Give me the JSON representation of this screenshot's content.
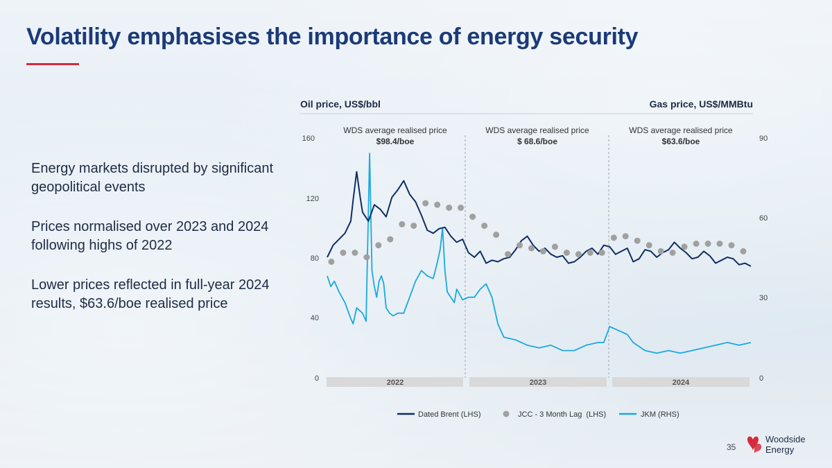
{
  "slide": {
    "title": "Volatility emphasises the importance of energy security",
    "bullets": [
      "Energy markets disrupted by significant geopolitical events",
      "Prices normalised over 2023 and 2024 following highs of 2022",
      "Lower prices reflected in full-year 2024 results, $63.6/boe realised price"
    ],
    "page_number": "35",
    "logo": {
      "line1": "Woodside",
      "line2": "Energy"
    },
    "colors": {
      "title": "#1b3a78",
      "accent": "#d52b3b",
      "brent": "#0f2d62",
      "jcc": "#a0a0a0",
      "jkm": "#19a9df"
    }
  },
  "chart_data": {
    "type": "line",
    "left_axis_title": "Oil price, US$/bbl",
    "right_axis_title": "Gas price, US$/MMBtu",
    "ylim_left": [
      0,
      160
    ],
    "ylim_right": [
      0,
      90
    ],
    "yticks_left": [
      "0",
      "40",
      "80",
      "120",
      "160"
    ],
    "yticks_right": [
      "0",
      "30",
      "60",
      "90"
    ],
    "xlim": [
      0,
      36
    ],
    "year_labels": [
      "2022",
      "2023",
      "2024"
    ],
    "annotations": [
      {
        "label": "WDS average realised price",
        "value": "$98.4/boe"
      },
      {
        "label": "WDS average realised price",
        "value": "$ 68.6/boe"
      },
      {
        "label": "WDS average realised price",
        "value": "$63.6/boe"
      }
    ],
    "legend": [
      "Dated Brent (LHS)",
      "JCC - 3 Month Lag  (LHS)",
      "JKM (RHS)"
    ],
    "series": [
      {
        "name": "Dated Brent (LHS)",
        "axis": "left",
        "style": "line",
        "x": [
          0,
          0.5,
          1,
          1.5,
          2,
          2.2,
          2.5,
          2.8,
          3,
          3.5,
          4,
          4.5,
          5,
          5.5,
          6,
          6.5,
          7,
          7.5,
          8,
          8.5,
          9,
          9.5,
          10,
          10.5,
          11,
          11.5,
          12,
          12.5,
          13,
          13.5,
          14,
          14.5,
          15,
          15.5,
          16,
          16.5,
          17,
          17.5,
          18,
          18.5,
          19,
          19.5,
          20,
          20.5,
          21,
          21.5,
          22,
          22.5,
          23,
          23.5,
          24,
          24.5,
          25,
          25.5,
          26,
          26.5,
          27,
          27.5,
          28,
          28.5,
          29,
          29.5,
          30,
          30.5,
          31,
          31.5,
          32,
          32.5,
          33,
          33.5,
          34,
          34.5,
          35,
          35.5,
          36
        ],
        "values": [
          80,
          88,
          92,
          96,
          104,
          118,
          137,
          120,
          110,
          104,
          115,
          112,
          107,
          120,
          125,
          131,
          122,
          117,
          108,
          98,
          96,
          99,
          100,
          94,
          90,
          92,
          83,
          80,
          84,
          76,
          78,
          77,
          79,
          80,
          85,
          91,
          94,
          88,
          84,
          86,
          82,
          80,
          81,
          76,
          77,
          80,
          84,
          86,
          82,
          88,
          87,
          82,
          84,
          86,
          77,
          79,
          85,
          84,
          80,
          83,
          85,
          90,
          86,
          83,
          79,
          80,
          84,
          81,
          76,
          78,
          80,
          79,
          75,
          76,
          74
        ]
      },
      {
        "name": "JCC - 3 Month Lag  (LHS)",
        "axis": "left",
        "style": "dots",
        "x": [
          0.35,
          1.35,
          2.35,
          3.35,
          4.35,
          5.35,
          6.35,
          7.35,
          8.35,
          9.35,
          10.35,
          11.35,
          12.35,
          13.35,
          14.35,
          15.35,
          16.35,
          17.35,
          18.35,
          19.35,
          20.35,
          21.35,
          22.35,
          23.35,
          24.35,
          25.35,
          26.35,
          27.35,
          28.35,
          29.35,
          30.35,
          31.35,
          32.35,
          33.35,
          34.35,
          35.35
        ],
        "values": [
          77,
          83,
          83,
          80,
          88,
          92,
          102,
          101,
          116,
          115,
          113,
          113,
          107,
          101,
          95,
          82,
          88,
          86,
          84,
          87,
          83,
          82,
          83,
          83,
          93,
          94,
          91,
          88,
          84,
          83,
          87,
          89,
          89,
          89,
          88,
          84
        ]
      },
      {
        "name": "JKM (RHS)",
        "axis": "right",
        "style": "line",
        "x": [
          0,
          0.3,
          0.6,
          1,
          1.5,
          2,
          2.2,
          2.5,
          3,
          3.3,
          3.6,
          3.8,
          4,
          4.2,
          4.4,
          4.6,
          4.8,
          5,
          5.3,
          5.6,
          6,
          6.5,
          7,
          7.5,
          8,
          8.5,
          9,
          9.3,
          9.6,
          9.8,
          10,
          10.2,
          10.5,
          10.8,
          11,
          11.5,
          12,
          12.5,
          13,
          13.5,
          14,
          14.5,
          15,
          16,
          17,
          18,
          19,
          20,
          21,
          22,
          23,
          23.5,
          24,
          24.5,
          25,
          25.5,
          26,
          27,
          28,
          29,
          30,
          31,
          32,
          33,
          34,
          35,
          36
        ],
        "values": [
          38,
          34,
          36,
          32,
          28,
          22,
          20,
          26,
          24,
          21,
          84,
          40,
          34,
          30,
          36,
          38,
          35,
          26,
          24,
          23,
          24,
          24,
          30,
          36,
          40,
          38,
          37,
          42,
          48,
          56,
          40,
          32,
          30,
          28,
          33,
          29,
          30,
          30,
          33,
          35,
          30,
          20,
          15,
          14,
          12,
          11,
          12,
          10,
          10,
          12,
          13,
          13,
          19,
          18,
          17,
          16,
          13,
          10,
          9,
          10,
          9,
          10,
          11,
          12,
          13,
          12,
          13
        ]
      }
    ]
  }
}
